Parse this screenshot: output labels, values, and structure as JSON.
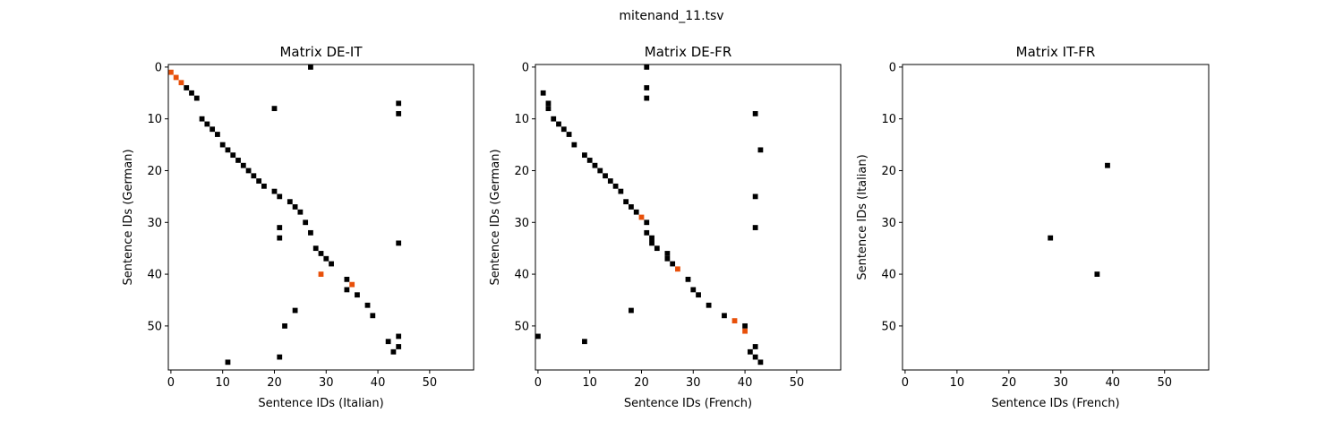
{
  "figure": {
    "suptitle": "mitenand_11.tsv"
  },
  "colors": {
    "black": "#000000",
    "highlight": "#e8500a",
    "frame": "#000000",
    "background": "#ffffff"
  },
  "chart_data": [
    {
      "type": "heatmap",
      "title": "Matrix DE-IT",
      "xlabel": "Sentence IDs (Italian)",
      "ylabel": "Sentence IDs (German)",
      "xlim": [
        -0.5,
        58.5
      ],
      "ylim": [
        58.5,
        -0.5
      ],
      "xticks": [
        0,
        10,
        20,
        30,
        40,
        50
      ],
      "yticks": [
        0,
        10,
        20,
        30,
        40,
        50
      ],
      "cells": [
        [
          27,
          0
        ],
        [
          3,
          4
        ],
        [
          4,
          5
        ],
        [
          5,
          6
        ],
        [
          44,
          7
        ],
        [
          20,
          8
        ],
        [
          44,
          9
        ],
        [
          6,
          10
        ],
        [
          7,
          11
        ],
        [
          8,
          12
        ],
        [
          9,
          13
        ],
        [
          10,
          15
        ],
        [
          11,
          16
        ],
        [
          12,
          17
        ],
        [
          13,
          18
        ],
        [
          14,
          19
        ],
        [
          15,
          20
        ],
        [
          16,
          21
        ],
        [
          17,
          22
        ],
        [
          18,
          23
        ],
        [
          20,
          24
        ],
        [
          21,
          25
        ],
        [
          23,
          26
        ],
        [
          24,
          27
        ],
        [
          25,
          28
        ],
        [
          26,
          30
        ],
        [
          21,
          31
        ],
        [
          27,
          32
        ],
        [
          21,
          33
        ],
        [
          44,
          34
        ],
        [
          28,
          35
        ],
        [
          29,
          36
        ],
        [
          30,
          37
        ],
        [
          31,
          38
        ],
        [
          34,
          41
        ],
        [
          34,
          43
        ],
        [
          36,
          44
        ],
        [
          38,
          46
        ],
        [
          24,
          47
        ],
        [
          39,
          48
        ],
        [
          22,
          50
        ],
        [
          44,
          52
        ],
        [
          42,
          53
        ],
        [
          44,
          54
        ],
        [
          43,
          55
        ],
        [
          21,
          56
        ],
        [
          11,
          57
        ]
      ],
      "highlight_cells": [
        [
          0,
          1
        ],
        [
          1,
          2
        ],
        [
          2,
          3
        ],
        [
          29,
          40
        ],
        [
          35,
          42
        ]
      ]
    },
    {
      "type": "heatmap",
      "title": "Matrix DE-FR",
      "xlabel": "Sentence IDs (French)",
      "ylabel": "Sentence IDs (German)",
      "xlim": [
        -0.5,
        58.5
      ],
      "ylim": [
        58.5,
        -0.5
      ],
      "xticks": [
        0,
        10,
        20,
        30,
        40,
        50
      ],
      "yticks": [
        0,
        10,
        20,
        30,
        40,
        50
      ],
      "cells": [
        [
          21,
          0
        ],
        [
          21,
          4
        ],
        [
          1,
          5
        ],
        [
          21,
          6
        ],
        [
          2,
          7
        ],
        [
          2,
          8
        ],
        [
          42,
          9
        ],
        [
          3,
          10
        ],
        [
          4,
          11
        ],
        [
          5,
          12
        ],
        [
          6,
          13
        ],
        [
          7,
          15
        ],
        [
          43,
          16
        ],
        [
          9,
          17
        ],
        [
          10,
          18
        ],
        [
          11,
          19
        ],
        [
          12,
          20
        ],
        [
          13,
          21
        ],
        [
          14,
          22
        ],
        [
          15,
          23
        ],
        [
          16,
          24
        ],
        [
          42,
          25
        ],
        [
          17,
          26
        ],
        [
          18,
          27
        ],
        [
          19,
          28
        ],
        [
          21,
          30
        ],
        [
          42,
          31
        ],
        [
          21,
          32
        ],
        [
          22,
          33
        ],
        [
          22,
          34
        ],
        [
          23,
          35
        ],
        [
          25,
          36
        ],
        [
          25,
          37
        ],
        [
          26,
          38
        ],
        [
          29,
          41
        ],
        [
          30,
          43
        ],
        [
          31,
          44
        ],
        [
          33,
          46
        ],
        [
          18,
          47
        ],
        [
          36,
          48
        ],
        [
          40,
          50
        ],
        [
          0,
          52
        ],
        [
          9,
          53
        ],
        [
          42,
          54
        ],
        [
          41,
          55
        ],
        [
          42,
          56
        ],
        [
          43,
          57
        ]
      ],
      "highlight_cells": [
        [
          20,
          29
        ],
        [
          27,
          39
        ],
        [
          38,
          49
        ],
        [
          40,
          51
        ]
      ]
    },
    {
      "type": "heatmap",
      "title": "Matrix IT-FR",
      "xlabel": "Sentence IDs (French)",
      "ylabel": "Sentence IDs (Italian)",
      "xlim": [
        -0.5,
        58.5
      ],
      "ylim": [
        58.5,
        -0.5
      ],
      "xticks": [
        0,
        10,
        20,
        30,
        40,
        50
      ],
      "yticks": [
        0,
        10,
        20,
        30,
        40,
        50
      ],
      "cells": [
        [
          39,
          19
        ],
        [
          28,
          33
        ],
        [
          37,
          40
        ]
      ],
      "highlight_cells": []
    }
  ]
}
